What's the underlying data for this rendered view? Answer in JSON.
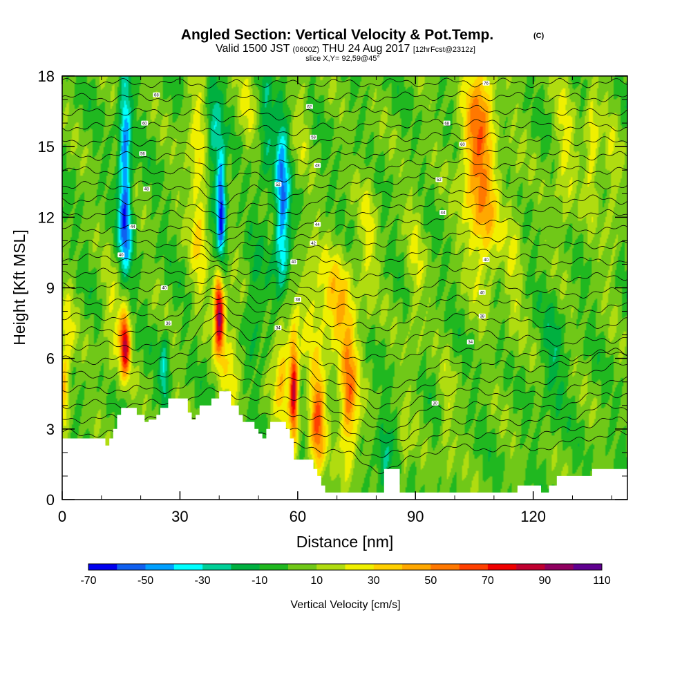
{
  "chart_data": {
    "type": "heatmap",
    "title": "Angled Section: Vertical Velocity & Pot.Temp.",
    "title_unit": "(C)",
    "subtitle_parts": [
      "Valid 1500 JST",
      "(0600Z)",
      "THU 24 Aug 2017",
      "[12hrFcst@2312z]"
    ],
    "subtitle2": "slice X,Y= 92,59@45°",
    "xlabel": "Distance [nm]",
    "ylabel": "Height [Kft MSL]",
    "xlim": [
      0,
      144
    ],
    "ylim": [
      0,
      18
    ],
    "x_ticks": [
      0,
      30,
      60,
      90,
      120
    ],
    "y_ticks": [
      0,
      3,
      6,
      9,
      12,
      15,
      18
    ],
    "colorbar": {
      "title": "Vertical Velocity [cm/s]",
      "ticks": [
        -70,
        -50,
        -30,
        -10,
        10,
        30,
        50,
        70,
        90,
        110
      ],
      "bounds": [
        -70,
        -60,
        -50,
        -40,
        -30,
        -20,
        -10,
        0,
        10,
        20,
        30,
        40,
        50,
        60,
        70,
        80,
        90,
        100,
        110
      ],
      "colors": [
        "#0000ee",
        "#1060f0",
        "#00a0ff",
        "#00ffff",
        "#00d098",
        "#00b040",
        "#20b820",
        "#70c818",
        "#b0dc10",
        "#f0f000",
        "#ffd000",
        "#ffa800",
        "#ff7800",
        "#ff4000",
        "#f00000",
        "#c00030",
        "#900060",
        "#600090"
      ]
    },
    "features": [
      {
        "x": 16,
        "z": 14.3,
        "w": -55,
        "sx": 1.1,
        "sz": 2.8
      },
      {
        "x": 16,
        "z": 11.2,
        "w": -25,
        "sx": 1.4,
        "sz": 1.2
      },
      {
        "x": 16,
        "z": 6.6,
        "w": 78,
        "sx": 0.9,
        "sz": 1.0
      },
      {
        "x": 13,
        "z": 7.4,
        "w": 18,
        "sx": 2.0,
        "sz": 1.6
      },
      {
        "x": 26,
        "z": 5.4,
        "w": -30,
        "sx": 0.8,
        "sz": 1.2
      },
      {
        "x": 35,
        "z": 11.6,
        "w": 28,
        "sx": 1.6,
        "sz": 2.2
      },
      {
        "x": 34,
        "z": 15.5,
        "w": 18,
        "sx": 2.0,
        "sz": 1.8
      },
      {
        "x": 40.5,
        "z": 12.4,
        "w": -68,
        "sx": 0.8,
        "sz": 1.8
      },
      {
        "x": 38.5,
        "z": 15.5,
        "w": -30,
        "sx": 1.2,
        "sz": 2.0
      },
      {
        "x": 40,
        "z": 8.0,
        "w": 95,
        "sx": 0.9,
        "sz": 1.2
      },
      {
        "x": 43,
        "z": 5.8,
        "w": 20,
        "sx": 2.0,
        "sz": 2.0
      },
      {
        "x": 49,
        "z": 8.0,
        "w": -15,
        "sx": 1.8,
        "sz": 2.0
      },
      {
        "x": 56,
        "z": 13.2,
        "w": -48,
        "sx": 1.3,
        "sz": 2.3
      },
      {
        "x": 56,
        "z": 10.5,
        "w": -20,
        "sx": 1.4,
        "sz": 1.3
      },
      {
        "x": 52,
        "z": 15.5,
        "w": -20,
        "sx": 1.2,
        "sz": 2.0
      },
      {
        "x": 59,
        "z": 4.6,
        "w": 85,
        "sx": 0.8,
        "sz": 1.5
      },
      {
        "x": 56,
        "z": 5.4,
        "w": 40,
        "sx": 1.4,
        "sz": 1.4
      },
      {
        "x": 65,
        "z": 3.3,
        "w": 58,
        "sx": 1.4,
        "sz": 1.7
      },
      {
        "x": 73,
        "z": 4.2,
        "w": 55,
        "sx": 1.6,
        "sz": 1.9
      },
      {
        "x": 70,
        "z": 8.2,
        "w": 35,
        "sx": 3.2,
        "sz": 1.6
      },
      {
        "x": 63,
        "z": 8.5,
        "w": 18,
        "sx": 2.2,
        "sz": 1.8
      },
      {
        "x": 78,
        "z": 11.0,
        "w": 18,
        "sx": 1.5,
        "sz": 2.5
      },
      {
        "x": 82,
        "z": 1.5,
        "w": -22,
        "sx": 1.5,
        "sz": 1.3
      },
      {
        "x": 87,
        "z": 2.0,
        "w": 18,
        "sx": 0.8,
        "sz": 1.2
      },
      {
        "x": 90,
        "z": 9.5,
        "w": 15,
        "sx": 1.5,
        "sz": 3.0
      },
      {
        "x": 105,
        "z": 14.8,
        "w": 42,
        "sx": 2.6,
        "sz": 2.6
      },
      {
        "x": 108,
        "z": 12.0,
        "w": 30,
        "sx": 2.4,
        "sz": 2.2
      },
      {
        "x": 108,
        "z": 17.2,
        "w": 22,
        "sx": 2.2,
        "sz": 1.5
      },
      {
        "x": 115,
        "z": 10.5,
        "w": 15,
        "sx": 1.6,
        "sz": 3.0
      },
      {
        "x": 128,
        "z": 14.5,
        "w": 20,
        "sx": 1.8,
        "sz": 2.5
      },
      {
        "x": 135,
        "z": 15.0,
        "w": 28,
        "sx": 1.3,
        "sz": 1.8
      },
      {
        "x": 140,
        "z": 13.0,
        "w": 15,
        "sx": 1.5,
        "sz": 2.5
      },
      {
        "x": 0.5,
        "z": 4.8,
        "w": 38,
        "sx": 0.8,
        "sz": 1.2
      },
      {
        "x": 1.5,
        "z": 7.0,
        "w": 18,
        "sx": 1.2,
        "sz": 1.5
      },
      {
        "x": 125,
        "z": 6.0,
        "w": -15,
        "sx": 2.0,
        "sz": 2.0
      },
      {
        "x": 98,
        "z": 3.0,
        "w": 15,
        "sx": 1.2,
        "sz": 2.0
      },
      {
        "x": 47,
        "z": 16.8,
        "w": 15,
        "sx": 1.5,
        "sz": 1.5
      },
      {
        "x": 61,
        "z": 16.5,
        "w": 12,
        "sx": 1.5,
        "sz": 1.8
      }
    ],
    "terrain_x": [
      0,
      10,
      11,
      12,
      13,
      14,
      15,
      16,
      18,
      19,
      21,
      22,
      24,
      25,
      27,
      30,
      32,
      33,
      34,
      35,
      37,
      38,
      40,
      41,
      43,
      45,
      46,
      48,
      49,
      50,
      51,
      52,
      53,
      54,
      55,
      56,
      57,
      58,
      59,
      61,
      62,
      64,
      65,
      66,
      67,
      68,
      78,
      80,
      82,
      83,
      84,
      85,
      86,
      87,
      88,
      89,
      98,
      99,
      100,
      101,
      102,
      103,
      104,
      115,
      116,
      120,
      121,
      122,
      124,
      126,
      128,
      134,
      135,
      140,
      144
    ],
    "terrain_top": [
      2.6,
      2.6,
      2.3,
      2.6,
      3.0,
      3.6,
      3.9,
      3.9,
      3.9,
      3.6,
      3.3,
      3.4,
      3.6,
      3.9,
      4.3,
      4.3,
      3.7,
      3.4,
      3.6,
      4.0,
      4.0,
      4.3,
      4.6,
      4.6,
      4.0,
      3.6,
      3.3,
      3.3,
      3.0,
      2.8,
      2.6,
      3.0,
      3.3,
      3.3,
      3.3,
      3.3,
      3.0,
      2.6,
      1.7,
      1.7,
      1.7,
      1.3,
      1.0,
      0.6,
      0.3,
      0.3,
      0.3,
      0.3,
      1.3,
      1.3,
      1.3,
      1.3,
      0.3,
      0.3,
      0.3,
      0.3,
      0.3,
      0.3,
      0.3,
      0.3,
      0.3,
      0.3,
      0.3,
      0.3,
      0.6,
      0.6,
      0.6,
      0.3,
      0.6,
      1.0,
      1.0,
      1.0,
      1.3,
      1.3,
      1.3
    ],
    "isentropes": {
      "levels": 28,
      "labels": [
        {
          "x": 24,
          "z": 17.2,
          "text": "68"
        },
        {
          "x": 21,
          "z": 16.0,
          "text": "60"
        },
        {
          "x": 20.5,
          "z": 14.7,
          "text": "56"
        },
        {
          "x": 21.5,
          "z": 13.2,
          "text": "48"
        },
        {
          "x": 18,
          "z": 11.6,
          "text": "44"
        },
        {
          "x": 15,
          "z": 10.4,
          "text": "40"
        },
        {
          "x": 26,
          "z": 9.0,
          "text": "40"
        },
        {
          "x": 27,
          "z": 7.5,
          "text": "36"
        },
        {
          "x": 63,
          "z": 16.7,
          "text": "62"
        },
        {
          "x": 64,
          "z": 15.4,
          "text": "58"
        },
        {
          "x": 65,
          "z": 14.2,
          "text": "48"
        },
        {
          "x": 55,
          "z": 13.4,
          "text": "52"
        },
        {
          "x": 65,
          "z": 11.7,
          "text": "44"
        },
        {
          "x": 64,
          "z": 10.9,
          "text": "42"
        },
        {
          "x": 59,
          "z": 10.1,
          "text": "40"
        },
        {
          "x": 60,
          "z": 8.5,
          "text": "38"
        },
        {
          "x": 55,
          "z": 7.3,
          "text": "34"
        },
        {
          "x": 108,
          "z": 17.7,
          "text": "76"
        },
        {
          "x": 98,
          "z": 16.0,
          "text": "68"
        },
        {
          "x": 102,
          "z": 15.1,
          "text": "60"
        },
        {
          "x": 96,
          "z": 13.6,
          "text": "52"
        },
        {
          "x": 97,
          "z": 12.2,
          "text": "44"
        },
        {
          "x": 108,
          "z": 10.2,
          "text": "40"
        },
        {
          "x": 107,
          "z": 8.8,
          "text": "40"
        },
        {
          "x": 107,
          "z": 7.8,
          "text": "38"
        },
        {
          "x": 104,
          "z": 6.7,
          "text": "34"
        },
        {
          "x": 95,
          "z": 4.1,
          "text": "30"
        }
      ]
    }
  }
}
